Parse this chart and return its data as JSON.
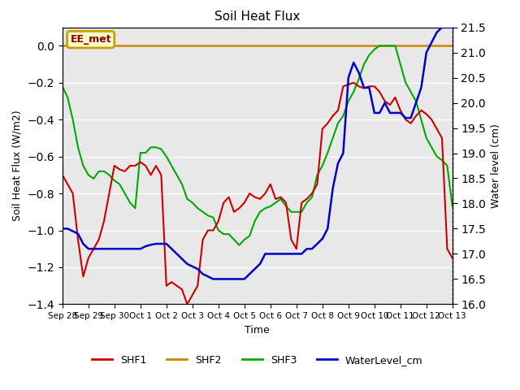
{
  "title": "Soil Heat Flux",
  "ylabel_left": "Soil Heat Flux (W/m2)",
  "ylabel_right": "Water level (cm)",
  "xlabel": "Time",
  "ylim_left": [
    -1.4,
    0.1
  ],
  "ylim_right": [
    16.0,
    21.5
  ],
  "background_color": "#ffffff",
  "plot_bg_color": "#e8e8e8",
  "grid_color": "#ffffff",
  "annotation_box_text": "EE_met",
  "annotation_box_color": "#c8a000",
  "annotation_box_bg": "#ffffcc",
  "shf1_color": "#cc0000",
  "shf2_color": "#cc8800",
  "shf3_color": "#00aa00",
  "water_color": "#0000cc",
  "shf2_value": 0.0,
  "x_tick_labels": [
    "Sep 28",
    "Sep 29",
    "Sep 30",
    "Oct 1",
    "Oct 2",
    "Oct 3",
    "Oct 4",
    "Oct 5",
    "Oct 6",
    "Oct 7",
    "Oct 8",
    "Oct 9",
    "Oct 10",
    "Oct 11",
    "Oct 12",
    "Oct 13"
  ],
  "shf1_x": [
    0,
    0.2,
    0.4,
    0.6,
    0.8,
    1.0,
    1.2,
    1.4,
    1.6,
    1.8,
    2.0,
    2.2,
    2.4,
    2.6,
    2.8,
    3.0,
    3.2,
    3.4,
    3.6,
    3.8,
    4.0,
    4.2,
    4.4,
    4.6,
    4.8,
    5.0,
    5.2,
    5.4,
    5.6,
    5.8,
    6.0,
    6.2,
    6.4,
    6.6,
    6.8,
    7.0,
    7.2,
    7.4,
    7.6,
    7.8,
    8.0,
    8.2,
    8.4,
    8.6,
    8.8,
    9.0,
    9.2,
    9.4,
    9.6,
    9.8,
    10.0,
    10.2,
    10.4,
    10.6,
    10.8,
    11.0,
    11.2,
    11.4,
    11.6,
    11.8,
    12.0,
    12.2,
    12.4,
    12.6,
    12.8,
    13.0,
    13.2,
    13.4,
    13.6,
    13.8,
    14.0,
    14.2,
    14.4,
    14.6,
    14.8,
    15.0
  ],
  "shf1_y": [
    -0.7,
    -0.75,
    -0.8,
    -1.05,
    -1.25,
    -1.15,
    -1.1,
    -1.05,
    -0.95,
    -0.8,
    -0.65,
    -0.67,
    -0.68,
    -0.65,
    -0.65,
    -0.63,
    -0.65,
    -0.7,
    -0.65,
    -0.7,
    -1.3,
    -1.28,
    -1.3,
    -1.32,
    -1.4,
    -1.35,
    -1.3,
    -1.05,
    -1.0,
    -1.0,
    -0.95,
    -0.85,
    -0.82,
    -0.9,
    -0.88,
    -0.85,
    -0.8,
    -0.82,
    -0.83,
    -0.8,
    -0.75,
    -0.83,
    -0.82,
    -0.85,
    -1.05,
    -1.1,
    -0.85,
    -0.83,
    -0.8,
    -0.75,
    -0.45,
    -0.42,
    -0.38,
    -0.35,
    -0.22,
    -0.21,
    -0.2,
    -0.22,
    -0.23,
    -0.22,
    -0.22,
    -0.25,
    -0.3,
    -0.32,
    -0.28,
    -0.35,
    -0.4,
    -0.42,
    -0.38,
    -0.35,
    -0.37,
    -0.4,
    -0.45,
    -0.5,
    -1.1,
    -1.15
  ],
  "shf3_x": [
    0,
    0.2,
    0.4,
    0.6,
    0.8,
    1.0,
    1.2,
    1.4,
    1.6,
    1.8,
    2.0,
    2.2,
    2.4,
    2.6,
    2.8,
    3.0,
    3.2,
    3.4,
    3.6,
    3.8,
    4.0,
    4.2,
    4.4,
    4.6,
    4.8,
    5.0,
    5.2,
    5.4,
    5.6,
    5.8,
    6.0,
    6.2,
    6.4,
    6.6,
    6.8,
    7.0,
    7.2,
    7.4,
    7.6,
    7.8,
    8.0,
    8.2,
    8.4,
    8.6,
    8.8,
    9.0,
    9.2,
    9.4,
    9.6,
    9.8,
    10.0,
    10.2,
    10.4,
    10.6,
    10.8,
    11.0,
    11.2,
    11.4,
    11.6,
    11.8,
    12.0,
    12.2,
    12.4,
    12.6,
    12.8,
    13.0,
    13.2,
    13.4,
    13.6,
    13.8,
    14.0,
    14.2,
    14.4,
    14.6,
    14.8,
    15.0
  ],
  "shf3_y": [
    -0.22,
    -0.28,
    -0.4,
    -0.55,
    -0.65,
    -0.7,
    -0.72,
    -0.68,
    -0.68,
    -0.7,
    -0.73,
    -0.75,
    -0.8,
    -0.85,
    -0.88,
    -0.58,
    -0.58,
    -0.55,
    -0.55,
    -0.56,
    -0.6,
    -0.65,
    -0.7,
    -0.75,
    -0.83,
    -0.85,
    -0.88,
    -0.9,
    -0.92,
    -0.93,
    -1.0,
    -1.02,
    -1.02,
    -1.05,
    -1.08,
    -1.05,
    -1.03,
    -0.95,
    -0.9,
    -0.88,
    -0.87,
    -0.85,
    -0.83,
    -0.87,
    -0.9,
    -0.9,
    -0.9,
    -0.85,
    -0.82,
    -0.7,
    -0.65,
    -0.58,
    -0.5,
    -0.42,
    -0.38,
    -0.3,
    -0.25,
    -0.18,
    -0.1,
    -0.05,
    -0.02,
    0.0,
    0.0,
    0.0,
    0.0,
    -0.1,
    -0.2,
    -0.25,
    -0.3,
    -0.4,
    -0.5,
    -0.55,
    -0.6,
    -0.62,
    -0.65,
    -0.87
  ],
  "water_x": [
    0,
    0.2,
    0.4,
    0.6,
    0.8,
    1.0,
    1.2,
    1.4,
    1.6,
    1.8,
    2.0,
    2.2,
    2.4,
    2.6,
    2.8,
    3.0,
    3.2,
    3.4,
    3.6,
    3.8,
    4.0,
    4.2,
    4.4,
    4.6,
    4.8,
    5.0,
    5.2,
    5.4,
    5.6,
    5.8,
    6.0,
    6.2,
    6.4,
    6.6,
    6.8,
    7.0,
    7.2,
    7.4,
    7.6,
    7.8,
    8.0,
    8.2,
    8.4,
    8.6,
    8.8,
    9.0,
    9.2,
    9.4,
    9.6,
    9.8,
    10.0,
    10.2,
    10.4,
    10.6,
    10.8,
    11.0,
    11.2,
    11.4,
    11.6,
    11.8,
    12.0,
    12.2,
    12.4,
    12.6,
    12.8,
    13.0,
    13.2,
    13.4,
    13.6,
    13.8,
    14.0,
    14.2,
    14.4,
    14.6,
    14.8,
    15.0
  ],
  "water_y": [
    17.5,
    17.5,
    17.45,
    17.4,
    17.2,
    17.1,
    17.1,
    17.1,
    17.1,
    17.1,
    17.1,
    17.1,
    17.1,
    17.1,
    17.1,
    17.1,
    17.15,
    17.18,
    17.2,
    17.2,
    17.2,
    17.1,
    17.0,
    16.9,
    16.8,
    16.75,
    16.7,
    16.6,
    16.55,
    16.5,
    16.5,
    16.5,
    16.5,
    16.5,
    16.5,
    16.5,
    16.6,
    16.7,
    16.8,
    17.0,
    17.0,
    17.0,
    17.0,
    17.0,
    17.0,
    17.0,
    17.0,
    17.1,
    17.1,
    17.2,
    17.3,
    17.5,
    18.3,
    18.8,
    19.0,
    20.5,
    20.8,
    20.6,
    20.3,
    20.3,
    19.8,
    19.8,
    20.0,
    19.8,
    19.8,
    19.8,
    19.7,
    19.7,
    20.0,
    20.3,
    21.0,
    21.2,
    21.4,
    21.5,
    21.5,
    21.5
  ]
}
